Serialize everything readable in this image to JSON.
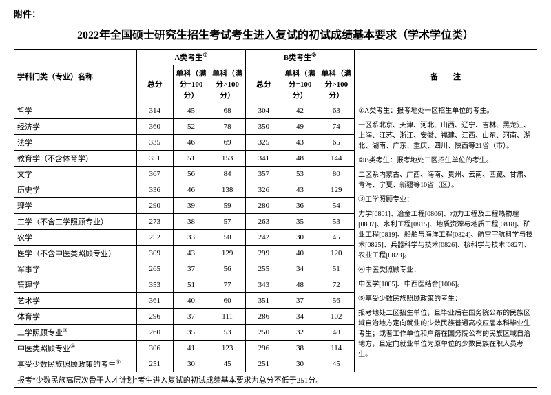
{
  "attachment_label": "附件：",
  "title": "2022年全国硕士研究生招生考试考生进入复试的初试成绩基本要求（学术学位类）",
  "header": {
    "subject": "学科门类（专业）名称",
    "catA": "A类考生",
    "catB": "B类考生",
    "total": "总分",
    "sub100": "单科（满分=100分）",
    "subOver100": "单科（满分>100分）",
    "notes": "备　　注",
    "supA": "①",
    "supB": "②"
  },
  "rows": [
    {
      "name": "哲学",
      "a": [
        314,
        45,
        68
      ],
      "b": [
        304,
        42,
        63
      ]
    },
    {
      "name": "经济学",
      "a": [
        360,
        52,
        78
      ],
      "b": [
        350,
        49,
        74
      ]
    },
    {
      "name": "法学",
      "a": [
        335,
        46,
        69
      ],
      "b": [
        325,
        43,
        65
      ]
    },
    {
      "name": "教育学（不含体育学）",
      "a": [
        351,
        51,
        153
      ],
      "b": [
        341,
        48,
        144
      ]
    },
    {
      "name": "文学",
      "a": [
        367,
        56,
        84
      ],
      "b": [
        357,
        53,
        80
      ]
    },
    {
      "name": "历史学",
      "a": [
        336,
        46,
        138
      ],
      "b": [
        326,
        43,
        129
      ]
    },
    {
      "name": "理学",
      "a": [
        290,
        39,
        59
      ],
      "b": [
        280,
        36,
        54
      ]
    },
    {
      "name": "工学（不含工学照顾专业）",
      "a": [
        273,
        38,
        57
      ],
      "b": [
        263,
        35,
        53
      ]
    },
    {
      "name": "农学",
      "a": [
        252,
        33,
        50
      ],
      "b": [
        242,
        30,
        45
      ]
    },
    {
      "name": "医学（不含中医类照顾专业）",
      "a": [
        309,
        43,
        129
      ],
      "b": [
        299,
        40,
        120
      ]
    },
    {
      "name": "军事学",
      "a": [
        265,
        37,
        56
      ],
      "b": [
        255,
        34,
        51
      ]
    },
    {
      "name": "管理学",
      "a": [
        353,
        51,
        77
      ],
      "b": [
        343,
        48,
        72
      ]
    },
    {
      "name": "艺术学",
      "a": [
        361,
        40,
        60
      ],
      "b": [
        351,
        37,
        56
      ]
    },
    {
      "name": "体育学",
      "a": [
        296,
        37,
        111
      ],
      "b": [
        286,
        34,
        102
      ]
    },
    {
      "name": "工学照顾专业",
      "sup": "③",
      "a": [
        260,
        35,
        53
      ],
      "b": [
        250,
        32,
        48
      ]
    },
    {
      "name": "中医类照顾专业",
      "sup": "④",
      "a": [
        306,
        41,
        123
      ],
      "b": [
        296,
        38,
        114
      ]
    },
    {
      "name": "享受少数民族照顾政策的考生",
      "sup": "⑤",
      "a": [
        251,
        30,
        45
      ],
      "b": [
        251,
        30,
        45
      ]
    }
  ],
  "footnote": "报考“少数民族高层次骨干人才计划”考生进入复试的初试成绩基本要求为总分不低于251分。",
  "notes": {
    "n1_head": "①A类考生：报考地处一区招生单位的考生。",
    "n1_body": "一区系北京、天津、河北、山西、辽宁、吉林、黑龙江、上海、江苏、浙江、安徽、福建、江西、山东、河南、湖北、湖南、广东、重庆、四川、陕西等21省（市）。",
    "n2_head": "②B类考生：报考地处二区招生单位的考生。",
    "n2_body": "二区系内蒙古、广西、海南、贵州、云南、西藏、甘肃、青海、宁夏、新疆等10省（区）。",
    "n3_head": "③工学照顾专业：",
    "n3_body": "力学[0801]、冶金工程[0806]、动力工程及工程热物理[0807]、水利工程[0815]、地质资源与地质工程[0818]、矿业工程[0819]、船舶与海洋工程[0824]、航空宇航科学与技术[0825]、兵器科学与技术[0826]、核科学与技术[0827]、农业工程[0828]。",
    "n4_head": "④中医类照顾专业：",
    "n4_body": "中医学[1005]、中西医结合[1006]。",
    "n5_head": "⑤享受少数民族照顾政策的考生：",
    "n5_body": "报考地处二区招生单位，且毕业后在国务院公布的民族区域自治地方定向就业的少数民族普通高校应届本科毕业生考生；或者工作单位和户籍在国务院公布的民族区域自治地方，且定向就业单位为原单位的少数民族在职人员考生。"
  }
}
